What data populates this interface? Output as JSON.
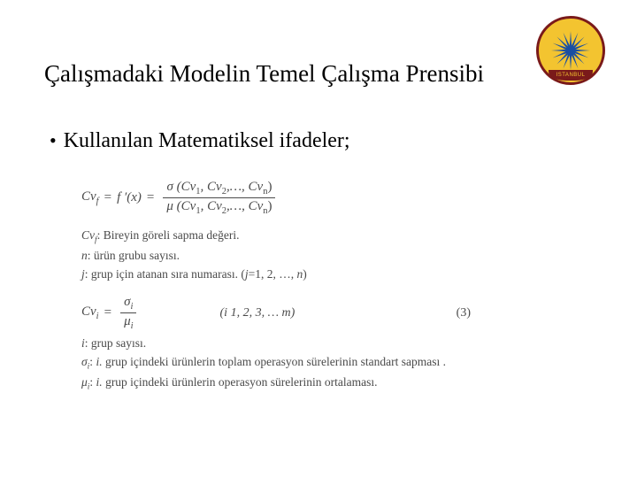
{
  "title": "Çalışmadaki Modelin Temel Çalışma Prensibi",
  "bullet": "Kullanılan Matematiksel ifadeler;",
  "logo": {
    "outer_color": "#f3c430",
    "ring_color": "#7a1a1a",
    "sun_color": "#1a4fa3",
    "ring_top_text": "",
    "bottom_text": "ISTANBUL",
    "ray_count": 16
  },
  "formula1": {
    "lhs": "Cv",
    "lhs_sub": "f",
    "eq1": " = ",
    "fprime": "f ′(x)",
    "eq2": " = ",
    "num_left": "σ (Cv",
    "num_sub1": "1",
    "num_mid": ", Cv",
    "num_sub2": "2",
    "num_tail": ",…, Cv",
    "num_subn": "n",
    "num_close": ")",
    "den_left": "μ (Cv",
    "den_sub1": "1",
    "den_mid": ", Cv",
    "den_sub2": "2",
    "den_tail": ",…, Cv",
    "den_subn": "n",
    "den_close": ")"
  },
  "defs1": {
    "l1a": "Cv",
    "l1a_sub": "f",
    "l1b": ": Bireyin göreli sapma değeri.",
    "l2a": "n",
    "l2b": ": ürün grubu sayısı.",
    "l3a": "j",
    "l3b": ": grup için atanan sıra numarası. (",
    "l3c": "j",
    "l3d": "=1, 2, …, ",
    "l3e": "n",
    "l3f": ")"
  },
  "formula2": {
    "lhs": "Cv",
    "lhs_sub": "i",
    "eq": " = ",
    "num": "σ",
    "num_sub": "i",
    "den": "μ",
    "den_sub": "i",
    "cond": "(i   1, 2, 3, … m)",
    "eqnum": "(3)"
  },
  "defs2": {
    "l1a": "i",
    "l1b": ": grup sayısı.",
    "l2a": "σ",
    "l2a_sub": "i",
    "l2b": ":  ",
    "l2c": "i.",
    "l2d": "  grup içindeki ürünlerin toplam operasyon sürelerinin standart sapması .",
    "l3a": "μ",
    "l3a_sub": "i",
    "l3b": ":  ",
    "l3c": "i.",
    "l3d": "  grup içindeki ürünlerin operasyon sürelerinin ortalaması."
  }
}
